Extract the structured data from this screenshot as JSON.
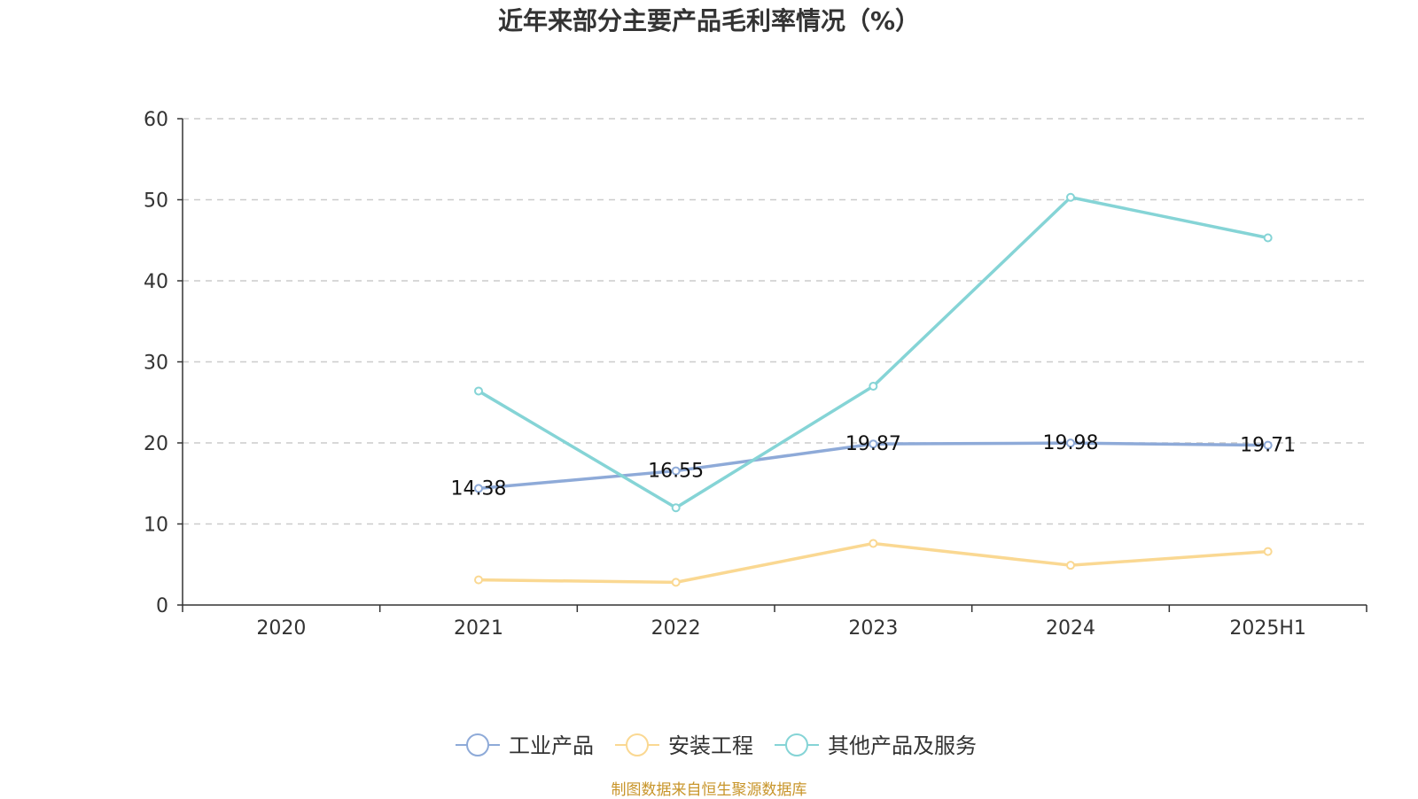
{
  "title": "近年来部分主要产品毛利率情况（%）",
  "source": "制图数据来自恒生聚源数据库",
  "source_color": "#c8952a",
  "chart_data": {
    "type": "line",
    "title": "近年来部分主要产品毛利率情况（%）",
    "categories": [
      "2020",
      "2021",
      "2022",
      "2023",
      "2024",
      "2025H1"
    ],
    "ylim": [
      0,
      60
    ],
    "yticks": [
      0,
      10,
      20,
      30,
      40,
      50,
      60
    ],
    "grid": true,
    "legend_position": "bottom-center",
    "series": [
      {
        "name": "工业产品",
        "color": "#8eaad8",
        "values": [
          null,
          14.38,
          16.55,
          19.87,
          19.98,
          19.71
        ],
        "labels": [
          "",
          "14.38",
          "16.55",
          "19.87",
          "19.98",
          "19.71"
        ]
      },
      {
        "name": "安装工程",
        "color": "#fad892",
        "values": [
          null,
          3.1,
          2.8,
          7.6,
          4.9,
          6.6
        ]
      },
      {
        "name": "其他产品及服务",
        "color": "#85d4d6",
        "values": [
          null,
          26.4,
          12.0,
          27.0,
          50.3,
          45.3
        ]
      }
    ]
  }
}
